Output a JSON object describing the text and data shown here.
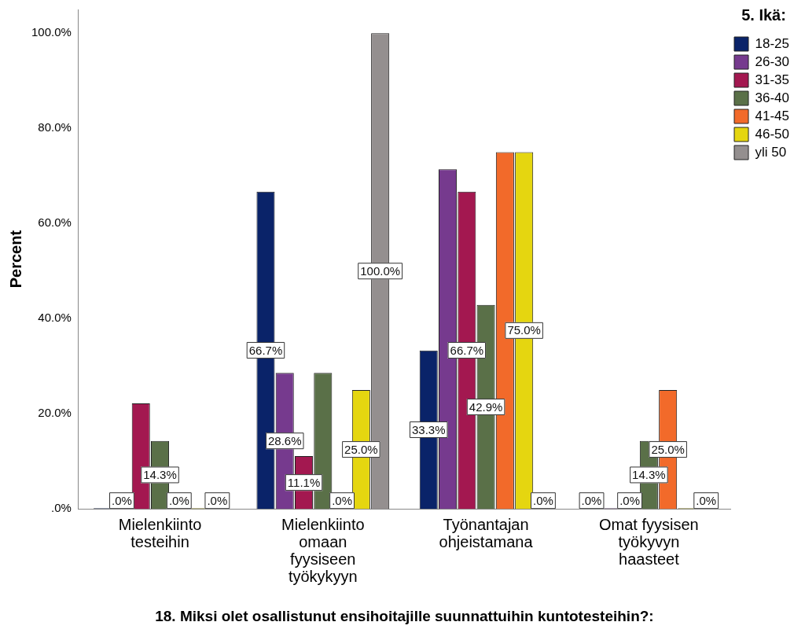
{
  "chart_data": {
    "type": "bar",
    "xlabel": "18. Miksi olet osallistunut ensihoitajille suunnattuihin kuntotesteihin?:",
    "ylabel": "Percent",
    "legend_title": "5. Ikä:",
    "legend": "top right",
    "grid": false,
    "categories": [
      "Mielenkiinto testeihin",
      "Mielenkiinto omaan fyysiseen työkykyyn",
      "Työnantajan ohjeistamana",
      "Omat fyysisen työkyvyn haasteet"
    ],
    "ylim": [
      0,
      105
    ],
    "yticks": [
      {
        "value": 0,
        "label": ".0%"
      },
      {
        "value": 20,
        "label": "20.0%"
      },
      {
        "value": 40,
        "label": "40.0%"
      },
      {
        "value": 60,
        "label": "60.0%"
      },
      {
        "value": 80,
        "label": "80.0%"
      },
      {
        "value": 100,
        "label": "100.0%"
      }
    ],
    "series": [
      {
        "name": "18-25",
        "color": "#0a2369",
        "values": [
          0,
          66.7,
          33.3,
          0
        ],
        "value_labels": [
          null,
          "66.7%",
          "33.3%",
          ".0%"
        ]
      },
      {
        "name": "26-30",
        "color": "#763a8e",
        "values": [
          0,
          28.6,
          71.4,
          0
        ],
        "value_labels": [
          ".0%",
          "28.6%",
          null,
          null
        ]
      },
      {
        "name": "31-35",
        "color": "#a31850",
        "values": [
          22.2,
          11.1,
          66.7,
          0
        ],
        "value_labels": [
          null,
          "11.1%",
          "66.7%",
          ".0%"
        ]
      },
      {
        "name": "36-40",
        "color": "#5a7048",
        "values": [
          14.3,
          28.6,
          42.9,
          14.3
        ],
        "value_labels": [
          "14.3%",
          null,
          "42.9%",
          "14.3%"
        ]
      },
      {
        "name": "41-45",
        "color": "#f26a2a",
        "values": [
          0,
          0,
          75.0,
          25.0
        ],
        "value_labels": [
          ".0%",
          ".0%",
          null,
          "25.0%"
        ]
      },
      {
        "name": "46-50",
        "color": "#e5d610",
        "values": [
          0,
          25.0,
          75.0,
          0
        ],
        "value_labels": [
          null,
          "25.0%",
          "75.0%",
          null
        ]
      },
      {
        "name": "yli 50",
        "color": "#948f8f",
        "values": [
          0,
          100.0,
          0,
          0
        ],
        "value_labels": [
          ".0%",
          "100.0%",
          ".0%",
          ".0%"
        ]
      }
    ]
  }
}
